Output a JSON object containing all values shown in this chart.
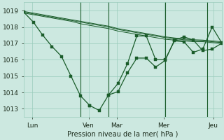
{
  "background_color": "#cce8e0",
  "grid_color": "#99ccbb",
  "line_color": "#1a5c2a",
  "ylabel": "Pression niveau de la mer( hPa )",
  "ylim": [
    1012.5,
    1019.5
  ],
  "yticks": [
    1013,
    1014,
    1015,
    1016,
    1017,
    1018,
    1019
  ],
  "xlim": [
    0,
    168
  ],
  "day_labels": [
    "Lun",
    "Ven",
    "Mar",
    "Mer",
    "Jeu"
  ],
  "day_positions": [
    7,
    55,
    79,
    119,
    161
  ],
  "vline_positions": [
    48,
    72,
    120,
    156
  ],
  "series_main": {
    "x": [
      0,
      8,
      16,
      24,
      32,
      40,
      48,
      56,
      64,
      72,
      80,
      88,
      96,
      104,
      112,
      120,
      128,
      136,
      144,
      152,
      160,
      168
    ],
    "y": [
      1018.9,
      1018.3,
      1017.5,
      1016.8,
      1016.2,
      1015.0,
      1013.8,
      1013.2,
      1012.9,
      1013.85,
      1014.05,
      1015.2,
      1016.1,
      1016.1,
      1015.55,
      1015.95,
      1017.2,
      1017.4,
      1017.2,
      1016.55,
      1016.65,
      1017.0
    ]
  },
  "series_dotted1": {
    "x": [
      0,
      8,
      16,
      24,
      32,
      40,
      48,
      56,
      64,
      72,
      80,
      88,
      96,
      104,
      112,
      120,
      128,
      136,
      144,
      152,
      160,
      168
    ],
    "y": [
      1018.85,
      1018.75,
      1018.65,
      1018.55,
      1018.45,
      1018.35,
      1018.2,
      1018.1,
      1018.0,
      1017.9,
      1017.75,
      1017.65,
      1017.55,
      1017.45,
      1017.35,
      1017.25,
      1017.2,
      1017.15,
      1017.1,
      1017.1,
      1017.05,
      1017.0
    ]
  },
  "series_dotted2": {
    "x": [
      0,
      8,
      16,
      24,
      32,
      40,
      48,
      56,
      64,
      72,
      80,
      88,
      96,
      104,
      112,
      120,
      128,
      136,
      144,
      152,
      160,
      168
    ],
    "y": [
      1018.9,
      1018.8,
      1018.7,
      1018.6,
      1018.5,
      1018.4,
      1018.3,
      1018.2,
      1018.1,
      1018.0,
      1017.85,
      1017.75,
      1017.65,
      1017.55,
      1017.45,
      1017.35,
      1017.28,
      1017.22,
      1017.18,
      1017.15,
      1017.1,
      1017.05
    ]
  },
  "series_dotted3": {
    "x": [
      0,
      8,
      16,
      24,
      32,
      40,
      48,
      56,
      64,
      72,
      80,
      88,
      96,
      104,
      112,
      120,
      128,
      136,
      144,
      152,
      160,
      168
    ],
    "y": [
      1018.95,
      1018.85,
      1018.75,
      1018.65,
      1018.55,
      1018.45,
      1018.35,
      1018.25,
      1018.15,
      1018.05,
      1017.9,
      1017.8,
      1017.7,
      1017.6,
      1017.5,
      1017.4,
      1017.33,
      1017.27,
      1017.22,
      1017.2,
      1017.15,
      1017.1
    ]
  },
  "series2": {
    "x": [
      72,
      80,
      88,
      96,
      104,
      112,
      120,
      128,
      136,
      144,
      152,
      160,
      168
    ],
    "y": [
      1013.85,
      1014.55,
      1015.75,
      1017.45,
      1017.45,
      1016.0,
      1016.0,
      1017.15,
      1017.1,
      1016.45,
      1016.65,
      1018.0,
      1017.05
    ]
  }
}
